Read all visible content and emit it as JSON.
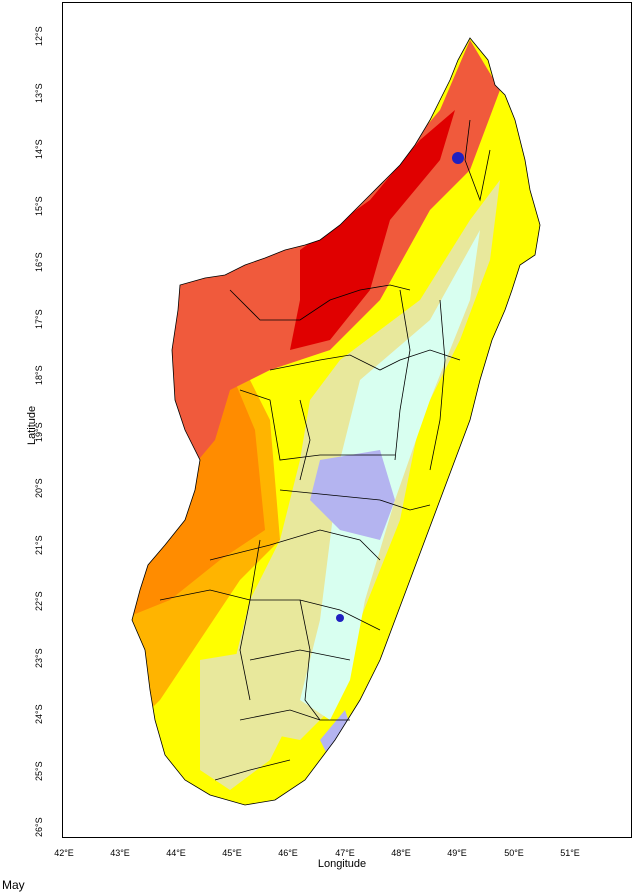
{
  "map": {
    "month": "May",
    "xlabel": "Longitude",
    "ylabel": "Latitude",
    "lon_ticks": [
      "42°E",
      "43°E",
      "44°E",
      "45°E",
      "46°E",
      "47°E",
      "48°E",
      "49°E",
      "50°E",
      "51°E"
    ],
    "lat_ticks": [
      "12°S",
      "13°S",
      "14°S",
      "15°S",
      "16°S",
      "17°S",
      "18°S",
      "19°S",
      "20°S",
      "21°S",
      "22°S",
      "23°S",
      "24°S",
      "25°S",
      "26°S"
    ],
    "colors": {
      "dark_red": "#e00000",
      "red_orange": "#f05a3c",
      "orange": "#ff8c00",
      "orange_light": "#ffb400",
      "yellow": "#ffff00",
      "pale_yellow": "#e8e89c",
      "pale_cyan": "#d8fff0",
      "lavender": "#b4b4f0",
      "blue": "#2020c0",
      "border": "#000000"
    }
  }
}
